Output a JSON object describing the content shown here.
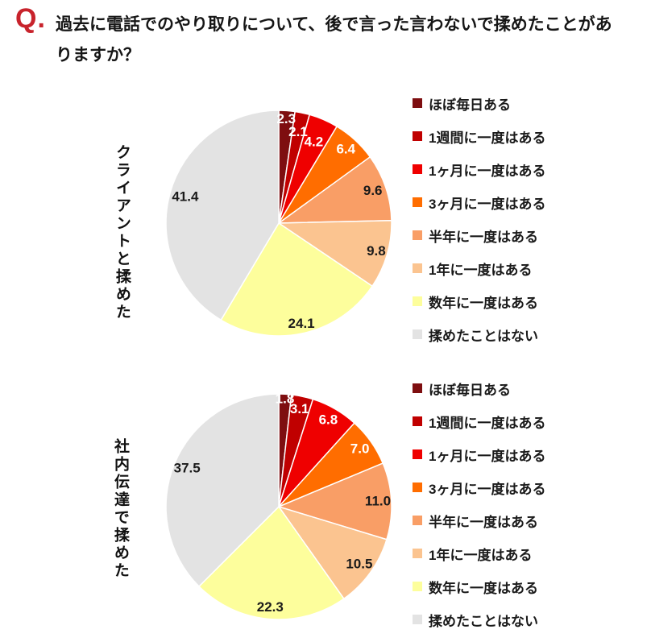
{
  "question": {
    "prefix": "Q.",
    "lines": [
      "過去に電話でのやり取りについて、後で言った言わないで揉めたことがあ",
      "りますか？"
    ],
    "full_text": "過去に電話でのやり取りについて、後で言った言わないで揉めたことがありますか？"
  },
  "colors": {
    "question_mark": "#c8232c",
    "text": "#161616",
    "value_label_light": "#ffffff",
    "value_label_dark": "#1a1a1a",
    "slice_border": "#ffffff",
    "palette": [
      "#7e0e10",
      "#c00000",
      "#ef0000",
      "#ff6d00",
      "#f99e66",
      "#fbc490",
      "#fdfe9c",
      "#e3e3e3"
    ]
  },
  "legend_labels": [
    "ほぼ毎日ある",
    "1週間に一度はある",
    "1ヶ月に一度はある",
    "3ヶ月に一度はある",
    "半年に一度はある",
    "1年に一度はある",
    "数年に一度はある",
    "揉めたことはない"
  ],
  "chart_data": [
    {
      "type": "pie",
      "title": "クライアントと揉めた",
      "categories": [
        "ほぼ毎日ある",
        "1週間に一度はある",
        "1ヶ月に一度はある",
        "3ヶ月に一度はある",
        "半年に一度はある",
        "1年に一度はある",
        "数年に一度はある",
        "揉めたことはない"
      ],
      "values": [
        2.3,
        2.1,
        4.2,
        6.4,
        9.6,
        9.8,
        24.1,
        41.4
      ],
      "colors": [
        "#7e0e10",
        "#c00000",
        "#ef0000",
        "#ff6d00",
        "#f99e66",
        "#fbc490",
        "#fdfe9c",
        "#e3e3e3"
      ],
      "start_angle_deg": 0,
      "direction": "clockwise",
      "legend_position": "right",
      "value_labels": "inside, one decimal"
    },
    {
      "type": "pie",
      "title": "社内伝達で揉めた",
      "categories": [
        "ほぼ毎日ある",
        "1週間に一度はある",
        "1ヶ月に一度はある",
        "3ヶ月に一度はある",
        "半年に一度はある",
        "1年に一度はある",
        "数年に一度はある",
        "揉めたことはない"
      ],
      "values": [
        1.8,
        3.1,
        6.8,
        7.0,
        11.0,
        10.5,
        22.3,
        37.5
      ],
      "colors": [
        "#7e0e10",
        "#c00000",
        "#ef0000",
        "#ff6d00",
        "#f99e66",
        "#fbc490",
        "#fdfe9c",
        "#e3e3e3"
      ],
      "start_angle_deg": 0,
      "direction": "clockwise",
      "legend_position": "right",
      "value_labels": "inside, one decimal"
    }
  ]
}
